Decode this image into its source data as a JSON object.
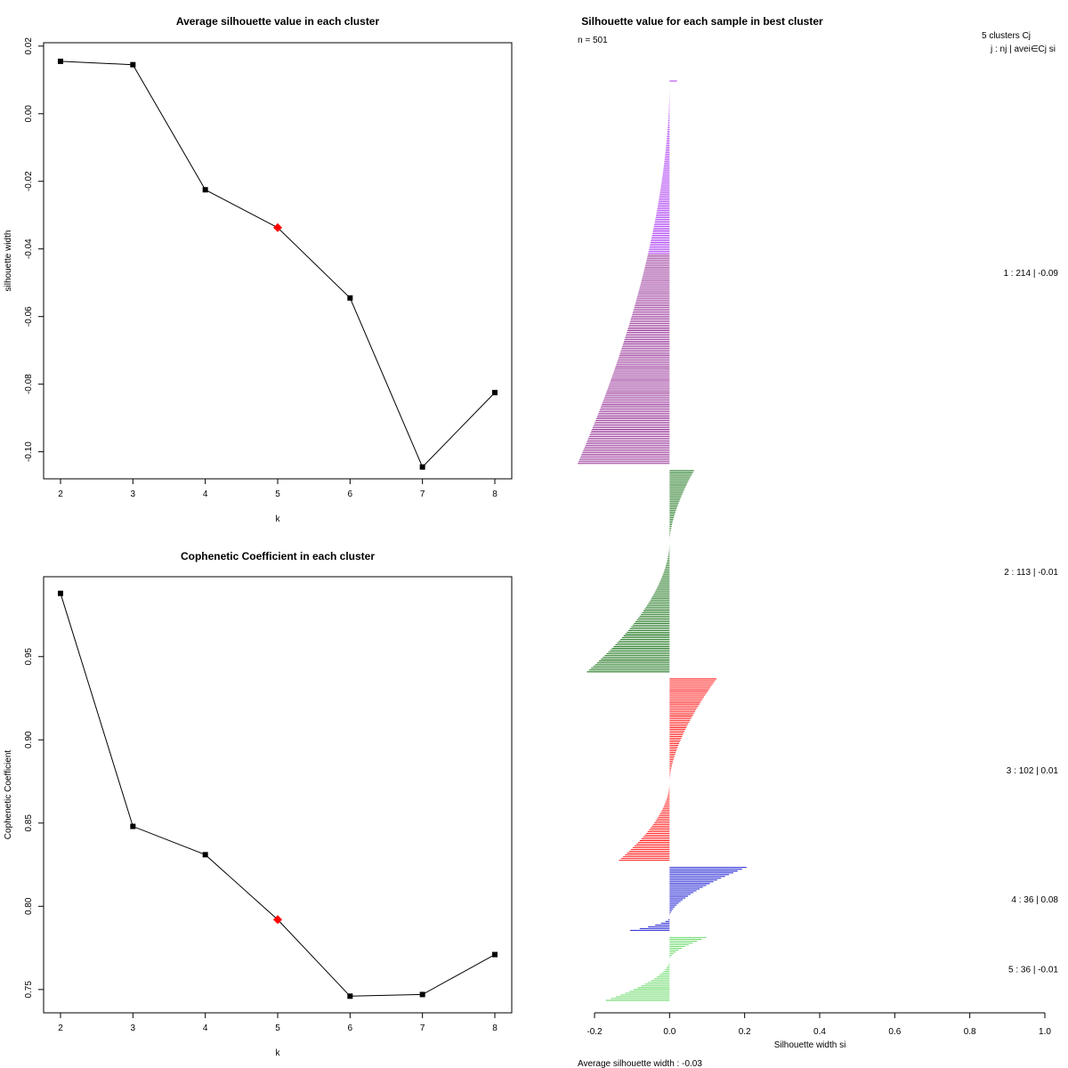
{
  "chart_data": [
    {
      "type": "line",
      "title": "Average silhouette value in each cluster",
      "xlabel": "k",
      "ylabel": "silhouette width",
      "x": [
        2,
        3,
        4,
        5,
        6,
        7,
        8
      ],
      "values": [
        0.0155,
        0.0145,
        -0.0225,
        -0.0337,
        -0.0545,
        -0.1045,
        -0.0825
      ],
      "highlight_index": 3,
      "highlight_color": "#ff0000",
      "xlim": [
        2,
        8
      ],
      "ylim": [
        -0.108,
        0.021
      ],
      "xticks": [
        2,
        3,
        4,
        5,
        6,
        7,
        8
      ],
      "yticks": [
        0.02,
        0.0,
        -0.02,
        -0.04,
        -0.06,
        -0.08,
        -0.1
      ],
      "ytick_labels": [
        "0.02",
        "0.00",
        "-0.02",
        "-0.04",
        "-0.06",
        "-0.08",
        "-0.10"
      ]
    },
    {
      "type": "line",
      "title": "Cophenetic Coefficient in each cluster",
      "xlabel": "k",
      "ylabel": "Cophenetic Coefficient",
      "x": [
        2,
        3,
        4,
        5,
        6,
        7,
        8
      ],
      "values": [
        0.988,
        0.848,
        0.831,
        0.792,
        0.746,
        0.747,
        0.771
      ],
      "highlight_index": 3,
      "highlight_color": "#ff0000",
      "xlim": [
        2,
        8
      ],
      "ylim": [
        0.736,
        0.998
      ],
      "xticks": [
        2,
        3,
        4,
        5,
        6,
        7,
        8
      ],
      "yticks": [
        0.75,
        0.8,
        0.85,
        0.9,
        0.95
      ],
      "ytick_labels": [
        "0.75",
        "0.80",
        "0.85",
        "0.90",
        "0.95"
      ]
    },
    {
      "type": "bar",
      "orientation": "horizontal",
      "title": "Silhouette value for each sample in best cluster",
      "n_label": "n = 501",
      "header": "5  clusters  Cj",
      "header_sub": "j :  nj | avei∈Cj  si",
      "xlabel": "Silhouette width si",
      "xlim": [
        -0.2,
        1.0
      ],
      "xticks": [
        -0.2,
        0.0,
        0.2,
        0.4,
        0.6,
        0.8,
        1.0
      ],
      "xtick_labels": [
        "-0.2",
        "0.0",
        "0.2",
        "0.4",
        "0.6",
        "0.8",
        "1.0"
      ],
      "average_label": "Average silhouette width :  -0.03",
      "clusters": [
        {
          "id": 1,
          "n": 214,
          "average": -0.09,
          "label": "1 :   214  |  -0.09",
          "color": "#a020f0",
          "color_alt": "#8b1a8b",
          "max_positive": 0.02,
          "min_negative": -0.245,
          "n_positive": 2,
          "violet_split": 0.45
        },
        {
          "id": 2,
          "n": 113,
          "average": -0.01,
          "label": "2 :   113  |  -0.01",
          "color": "#006400",
          "color_alt": "#1a4d1a",
          "max_positive": 0.065,
          "min_negative": -0.22,
          "n_positive": 40
        },
        {
          "id": 3,
          "n": 102,
          "average": 0.01,
          "label": "3 :   102  |  0.01",
          "color": "#ff0000",
          "color_alt": "#a52a2a",
          "max_positive": 0.125,
          "min_negative": -0.135,
          "n_positive": 58
        },
        {
          "id": 4,
          "n": 36,
          "average": 0.08,
          "label": "4 :   36  |  0.08",
          "color": "#0000cd",
          "color_alt": "#0000cd",
          "max_positive": 0.205,
          "min_negative": -0.105,
          "n_positive": 28
        },
        {
          "id": 5,
          "n": 36,
          "average": -0.01,
          "label": "5 :   36  |  -0.01",
          "color": "#5ad65a",
          "color_alt": "#5ad65a",
          "max_positive": 0.098,
          "min_negative": -0.17,
          "n_positive": 13
        }
      ]
    }
  ]
}
